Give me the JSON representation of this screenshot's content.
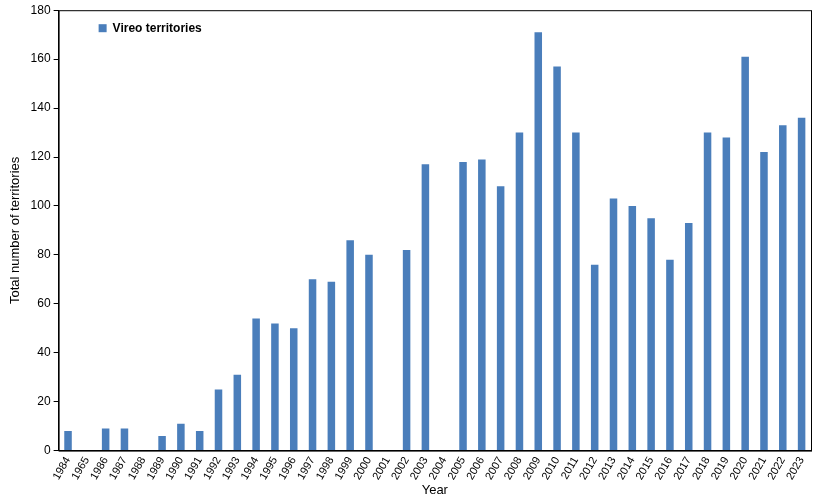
{
  "chart_data": {
    "type": "bar",
    "x_label": "Year",
    "y_label": "Total number of territories",
    "categories": [
      "1984",
      "1965",
      "1986",
      "1987",
      "1988",
      "1989",
      "1990",
      "1991",
      "1992",
      "1993",
      "1994",
      "1995",
      "1996",
      "1997",
      "1998",
      "1999",
      "2000",
      "2001",
      "2002",
      "2003",
      "2004",
      "2005",
      "2006",
      "2007",
      "2008",
      "2009",
      "2010",
      "2011",
      "2012",
      "2013",
      "2014",
      "2015",
      "2016",
      "2017",
      "2018",
      "2019",
      "2020",
      "2021",
      "2022",
      "2023"
    ],
    "series": [
      {
        "name": "Vireo territories",
        "color": "#4a7ebb",
        "values": [
          8,
          null,
          9,
          9,
          null,
          6,
          11,
          8,
          25,
          31,
          54,
          52,
          50,
          70,
          69,
          86,
          80,
          null,
          82,
          117,
          null,
          118,
          119,
          108,
          130,
          171,
          157,
          130,
          76,
          103,
          100,
          95,
          78,
          93,
          130,
          128,
          161,
          122,
          133,
          136
        ]
      }
    ],
    "ylim": [
      0,
      180
    ],
    "yticks": [
      0,
      20,
      40,
      60,
      80,
      100,
      120,
      140,
      160,
      180
    ],
    "grid": false,
    "legend": "top left"
  }
}
